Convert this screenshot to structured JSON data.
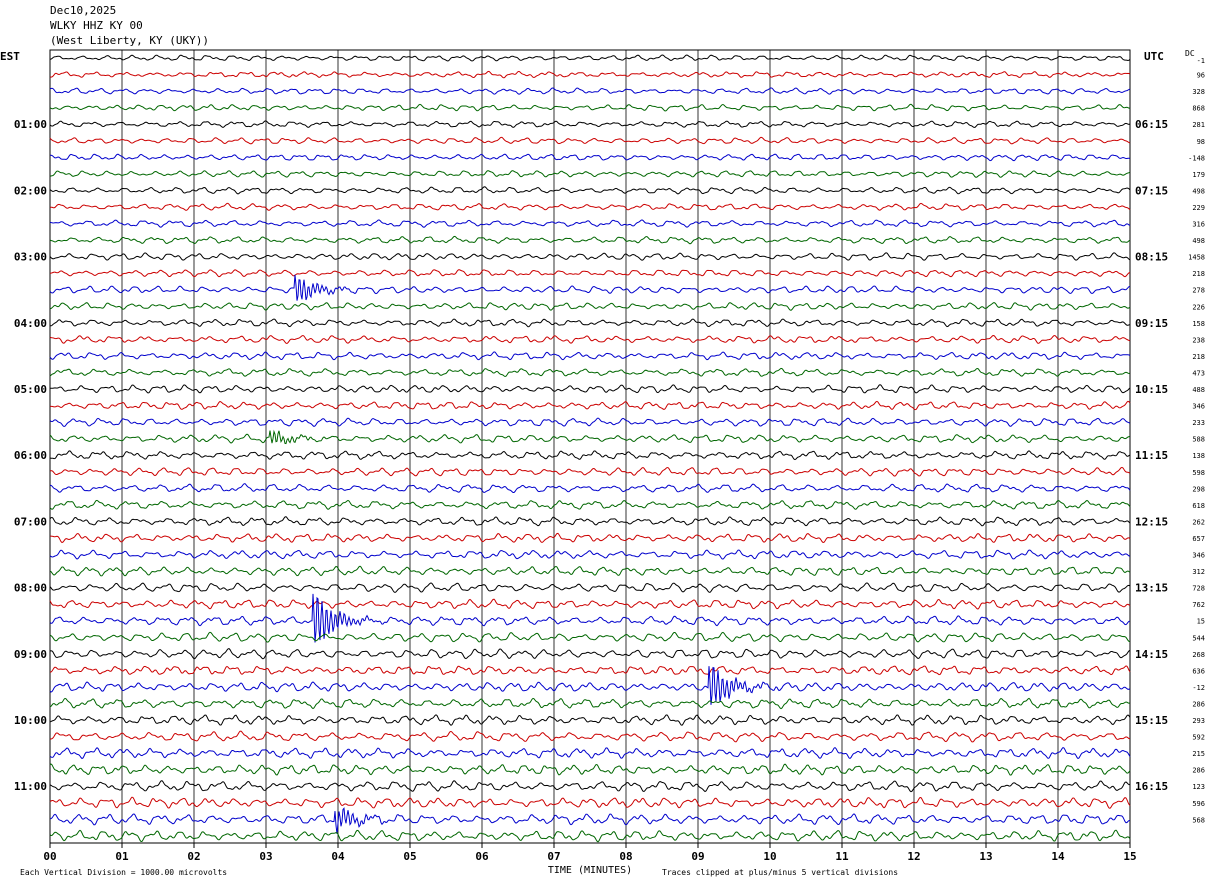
{
  "header": {
    "date": "Dec10,2025",
    "station": "WLKY HHZ KY 00",
    "location": "(West Liberty, KY (UKY))"
  },
  "left_zone": "EST",
  "right_zone": "UTC",
  "dc_label": "DC",
  "dc_first": "-1",
  "footer": {
    "scale_note": "Each Vertical Division = 1000.00 microvolts",
    "clip_note": "Traces clipped at plus/minus 5 vertical divisions"
  },
  "colors": {
    "trace_cycle": [
      "#000000",
      "#cc0000",
      "#0000cc",
      "#006600"
    ],
    "grid": "#000000"
  },
  "chart_data": {
    "type": "line",
    "title": "",
    "xlabel": "TIME (MINUTES)",
    "xlim": [
      0,
      15
    ],
    "x_ticks": [
      "00",
      "01",
      "02",
      "03",
      "04",
      "05",
      "06",
      "07",
      "08",
      "09",
      "10",
      "11",
      "12",
      "13",
      "14",
      "15"
    ],
    "trace_count": 48,
    "trace_interval_minutes": 15,
    "left_hour_labels": [
      "01:00",
      "02:00",
      "03:00",
      "04:00",
      "05:00",
      "06:00",
      "07:00",
      "08:00",
      "09:00",
      "10:00",
      "11:00"
    ],
    "right_hour_labels": [
      "06:15",
      "07:15",
      "08:15",
      "09:15",
      "10:15",
      "11:15",
      "12:15",
      "13:15",
      "14:15",
      "15:15",
      "16:15"
    ],
    "dc_offsets": [
      "96",
      "328",
      "868",
      "281",
      "98",
      "-148",
      "179",
      "498",
      "229",
      "316",
      "498",
      "1458",
      "218",
      "278",
      "226",
      "158",
      "238",
      "218",
      "473",
      "488",
      "346",
      "233",
      "588",
      "138",
      "598",
      "298",
      "618",
      "262",
      "657",
      "346",
      "312",
      "728",
      "762",
      "15",
      "544",
      "268",
      "636",
      "-12",
      "286",
      "293",
      "592",
      "215",
      "286",
      "123",
      "596",
      "568"
    ],
    "events": [
      {
        "trace": 14,
        "minute": 3.45,
        "amplitude": 1.6
      },
      {
        "trace": 23,
        "minute": 3.1,
        "amplitude": 0.8
      },
      {
        "trace": 34,
        "minute": 3.7,
        "amplitude": 3.2
      },
      {
        "trace": 38,
        "minute": 9.2,
        "amplitude": 2.6
      },
      {
        "trace": 46,
        "minute": 4.0,
        "amplitude": 1.4
      }
    ],
    "legend": "none",
    "grid": true
  }
}
